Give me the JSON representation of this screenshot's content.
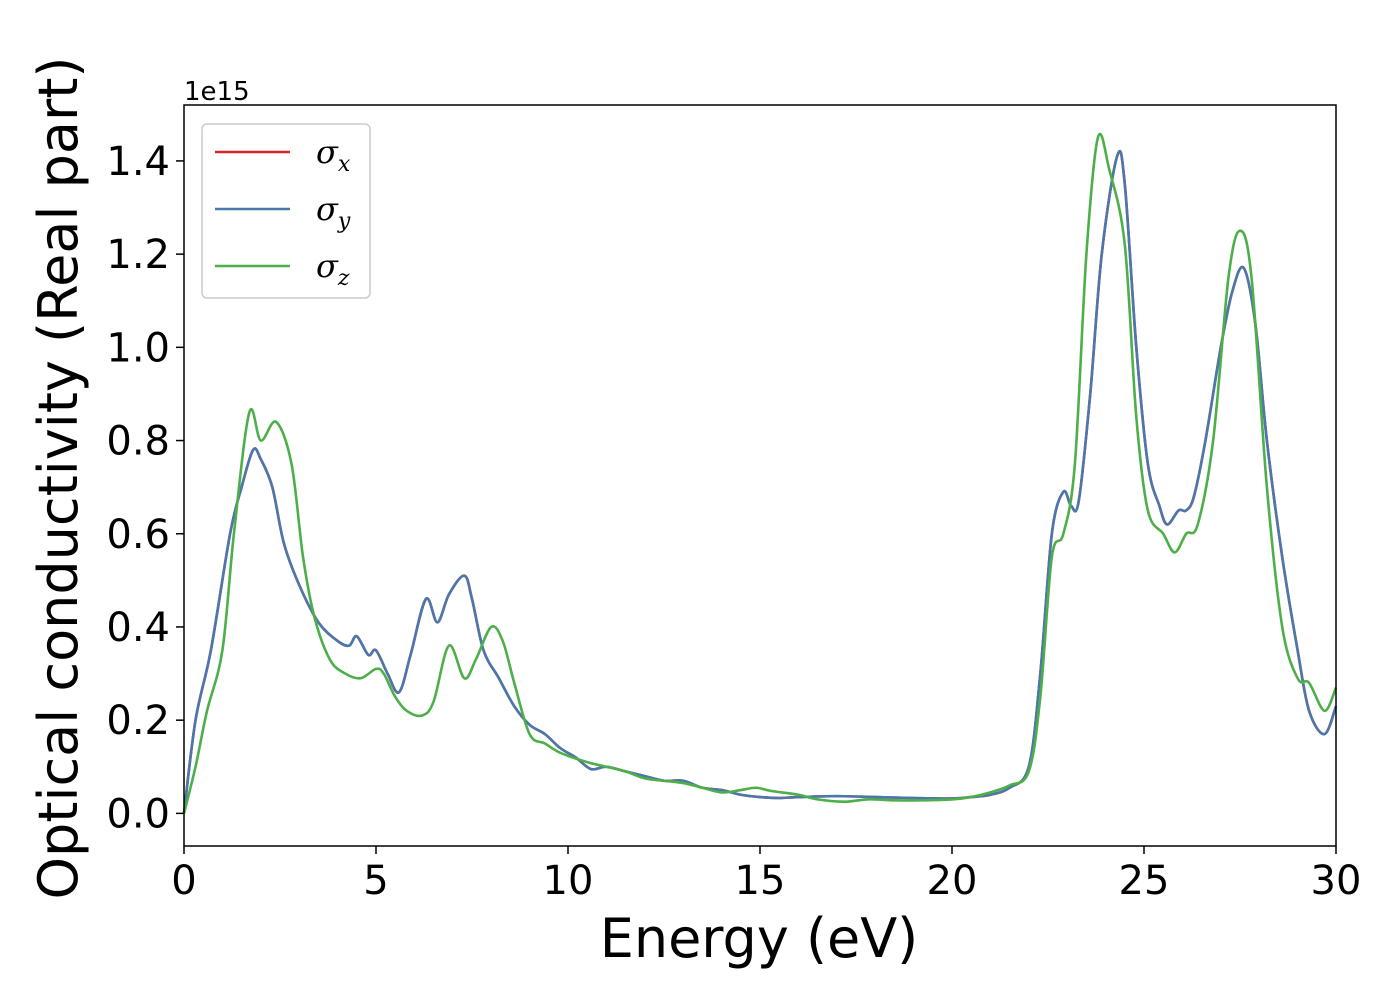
{
  "chart_data": {
    "type": "line",
    "xlabel": "Energy (eV)",
    "ylabel": "Optical conductivity (Real part)",
    "y_offset_label": "1e15",
    "xlim": [
      0,
      30
    ],
    "ylim": [
      -0.07,
      1.52
    ],
    "x_ticks": [
      0,
      5,
      10,
      15,
      20,
      25,
      30
    ],
    "x_tick_labels": [
      "0",
      "5",
      "10",
      "15",
      "20",
      "25",
      "30"
    ],
    "y_ticks": [
      0.0,
      0.2,
      0.4,
      0.6,
      0.8,
      1.0,
      1.2,
      1.4
    ],
    "y_tick_labels": [
      "0.0",
      "0.2",
      "0.4",
      "0.6",
      "0.8",
      "1.0",
      "1.2",
      "1.4"
    ],
    "grid": false,
    "legend_position": "top-left",
    "series": [
      {
        "name": "σx",
        "legend_base": "σ",
        "legend_sub": "x",
        "color": "#d62728",
        "points": [
          [
            0,
            0.0
          ],
          [
            0.3,
            0.2
          ],
          [
            0.7,
            0.35
          ],
          [
            1.2,
            0.6
          ],
          [
            1.5,
            0.7
          ],
          [
            1.8,
            0.78
          ],
          [
            2.0,
            0.76
          ],
          [
            2.3,
            0.7
          ],
          [
            2.6,
            0.58
          ],
          [
            3.0,
            0.49
          ],
          [
            3.5,
            0.41
          ],
          [
            4.0,
            0.37
          ],
          [
            4.3,
            0.36
          ],
          [
            4.5,
            0.38
          ],
          [
            4.8,
            0.34
          ],
          [
            5.0,
            0.35
          ],
          [
            5.3,
            0.3
          ],
          [
            5.6,
            0.26
          ],
          [
            5.9,
            0.34
          ],
          [
            6.3,
            0.46
          ],
          [
            6.6,
            0.41
          ],
          [
            6.9,
            0.47
          ],
          [
            7.3,
            0.51
          ],
          [
            7.5,
            0.46
          ],
          [
            7.8,
            0.35
          ],
          [
            8.2,
            0.29
          ],
          [
            8.6,
            0.23
          ],
          [
            9.0,
            0.19
          ],
          [
            9.4,
            0.17
          ],
          [
            9.8,
            0.14
          ],
          [
            10.2,
            0.12
          ],
          [
            10.6,
            0.095
          ],
          [
            11.0,
            0.1
          ],
          [
            11.5,
            0.09
          ],
          [
            12.0,
            0.08
          ],
          [
            12.5,
            0.07
          ],
          [
            13.0,
            0.07
          ],
          [
            13.5,
            0.055
          ],
          [
            14.0,
            0.05
          ],
          [
            14.5,
            0.04
          ],
          [
            15.0,
            0.035
          ],
          [
            15.5,
            0.033
          ],
          [
            16.0,
            0.035
          ],
          [
            17.0,
            0.037
          ],
          [
            18.0,
            0.035
          ],
          [
            19.0,
            0.033
          ],
          [
            20.0,
            0.032
          ],
          [
            20.5,
            0.035
          ],
          [
            21.0,
            0.04
          ],
          [
            21.5,
            0.055
          ],
          [
            22.0,
            0.1
          ],
          [
            22.3,
            0.3
          ],
          [
            22.6,
            0.6
          ],
          [
            22.9,
            0.69
          ],
          [
            23.1,
            0.66
          ],
          [
            23.3,
            0.67
          ],
          [
            23.6,
            0.9
          ],
          [
            23.9,
            1.2
          ],
          [
            24.3,
            1.41
          ],
          [
            24.5,
            1.35
          ],
          [
            24.8,
            1.0
          ],
          [
            25.1,
            0.75
          ],
          [
            25.4,
            0.66
          ],
          [
            25.6,
            0.62
          ],
          [
            25.9,
            0.65
          ],
          [
            26.1,
            0.65
          ],
          [
            26.3,
            0.68
          ],
          [
            26.6,
            0.8
          ],
          [
            27.0,
            1.0
          ],
          [
            27.3,
            1.12
          ],
          [
            27.6,
            1.17
          ],
          [
            27.9,
            1.05
          ],
          [
            28.2,
            0.8
          ],
          [
            28.6,
            0.55
          ],
          [
            29.0,
            0.35
          ],
          [
            29.3,
            0.22
          ],
          [
            29.7,
            0.17
          ],
          [
            30.0,
            0.23
          ]
        ]
      },
      {
        "name": "σy",
        "legend_base": "σ",
        "legend_sub": "y",
        "color": "#4a78ad",
        "points": [
          [
            0,
            0.0
          ],
          [
            0.3,
            0.2
          ],
          [
            0.7,
            0.35
          ],
          [
            1.2,
            0.6
          ],
          [
            1.5,
            0.7
          ],
          [
            1.8,
            0.78
          ],
          [
            2.0,
            0.76
          ],
          [
            2.3,
            0.7
          ],
          [
            2.6,
            0.58
          ],
          [
            3.0,
            0.49
          ],
          [
            3.5,
            0.41
          ],
          [
            4.0,
            0.37
          ],
          [
            4.3,
            0.36
          ],
          [
            4.5,
            0.38
          ],
          [
            4.8,
            0.34
          ],
          [
            5.0,
            0.35
          ],
          [
            5.3,
            0.3
          ],
          [
            5.6,
            0.26
          ],
          [
            5.9,
            0.34
          ],
          [
            6.3,
            0.46
          ],
          [
            6.6,
            0.41
          ],
          [
            6.9,
            0.47
          ],
          [
            7.3,
            0.51
          ],
          [
            7.5,
            0.46
          ],
          [
            7.8,
            0.35
          ],
          [
            8.2,
            0.29
          ],
          [
            8.6,
            0.23
          ],
          [
            9.0,
            0.19
          ],
          [
            9.4,
            0.17
          ],
          [
            9.8,
            0.14
          ],
          [
            10.2,
            0.12
          ],
          [
            10.6,
            0.095
          ],
          [
            11.0,
            0.1
          ],
          [
            11.5,
            0.09
          ],
          [
            12.0,
            0.08
          ],
          [
            12.5,
            0.07
          ],
          [
            13.0,
            0.07
          ],
          [
            13.5,
            0.055
          ],
          [
            14.0,
            0.05
          ],
          [
            14.5,
            0.04
          ],
          [
            15.0,
            0.035
          ],
          [
            15.5,
            0.033
          ],
          [
            16.0,
            0.035
          ],
          [
            17.0,
            0.037
          ],
          [
            18.0,
            0.035
          ],
          [
            19.0,
            0.033
          ],
          [
            20.0,
            0.032
          ],
          [
            20.5,
            0.035
          ],
          [
            21.0,
            0.04
          ],
          [
            21.5,
            0.055
          ],
          [
            22.0,
            0.1
          ],
          [
            22.3,
            0.3
          ],
          [
            22.6,
            0.6
          ],
          [
            22.9,
            0.69
          ],
          [
            23.1,
            0.66
          ],
          [
            23.3,
            0.67
          ],
          [
            23.6,
            0.9
          ],
          [
            23.9,
            1.2
          ],
          [
            24.3,
            1.41
          ],
          [
            24.5,
            1.35
          ],
          [
            24.8,
            1.0
          ],
          [
            25.1,
            0.75
          ],
          [
            25.4,
            0.66
          ],
          [
            25.6,
            0.62
          ],
          [
            25.9,
            0.65
          ],
          [
            26.1,
            0.65
          ],
          [
            26.3,
            0.68
          ],
          [
            26.6,
            0.8
          ],
          [
            27.0,
            1.0
          ],
          [
            27.3,
            1.12
          ],
          [
            27.6,
            1.17
          ],
          [
            27.9,
            1.05
          ],
          [
            28.2,
            0.8
          ],
          [
            28.6,
            0.55
          ],
          [
            29.0,
            0.35
          ],
          [
            29.3,
            0.22
          ],
          [
            29.7,
            0.17
          ],
          [
            30.0,
            0.23
          ]
        ]
      },
      {
        "name": "σz",
        "legend_base": "σ",
        "legend_sub": "z",
        "color": "#4daf4a",
        "points": [
          [
            0,
            0.0
          ],
          [
            0.3,
            0.1
          ],
          [
            0.6,
            0.22
          ],
          [
            1.0,
            0.35
          ],
          [
            1.3,
            0.6
          ],
          [
            1.7,
            0.86
          ],
          [
            2.0,
            0.8
          ],
          [
            2.4,
            0.84
          ],
          [
            2.8,
            0.75
          ],
          [
            3.1,
            0.55
          ],
          [
            3.4,
            0.42
          ],
          [
            3.8,
            0.33
          ],
          [
            4.2,
            0.3
          ],
          [
            4.6,
            0.29
          ],
          [
            5.0,
            0.31
          ],
          [
            5.2,
            0.3
          ],
          [
            5.5,
            0.25
          ],
          [
            5.8,
            0.22
          ],
          [
            6.2,
            0.21
          ],
          [
            6.5,
            0.24
          ],
          [
            6.9,
            0.36
          ],
          [
            7.3,
            0.29
          ],
          [
            7.6,
            0.33
          ],
          [
            8.0,
            0.4
          ],
          [
            8.3,
            0.37
          ],
          [
            8.6,
            0.28
          ],
          [
            9.0,
            0.17
          ],
          [
            9.4,
            0.15
          ],
          [
            9.8,
            0.13
          ],
          [
            10.5,
            0.11
          ],
          [
            11.0,
            0.1
          ],
          [
            11.5,
            0.09
          ],
          [
            12.0,
            0.075
          ],
          [
            12.5,
            0.07
          ],
          [
            13.0,
            0.065
          ],
          [
            13.5,
            0.055
          ],
          [
            14.0,
            0.045
          ],
          [
            14.5,
            0.05
          ],
          [
            14.9,
            0.055
          ],
          [
            15.3,
            0.048
          ],
          [
            16.0,
            0.04
          ],
          [
            16.5,
            0.03
          ],
          [
            17.2,
            0.025
          ],
          [
            17.8,
            0.03
          ],
          [
            18.5,
            0.028
          ],
          [
            19.2,
            0.028
          ],
          [
            20.0,
            0.03
          ],
          [
            20.5,
            0.035
          ],
          [
            21.0,
            0.045
          ],
          [
            21.5,
            0.06
          ],
          [
            22.0,
            0.09
          ],
          [
            22.3,
            0.25
          ],
          [
            22.6,
            0.55
          ],
          [
            22.9,
            0.6
          ],
          [
            23.2,
            0.75
          ],
          [
            23.5,
            1.2
          ],
          [
            23.8,
            1.45
          ],
          [
            24.1,
            1.38
          ],
          [
            24.5,
            1.22
          ],
          [
            24.8,
            0.85
          ],
          [
            25.1,
            0.65
          ],
          [
            25.5,
            0.6
          ],
          [
            25.8,
            0.56
          ],
          [
            26.1,
            0.6
          ],
          [
            26.4,
            0.62
          ],
          [
            26.8,
            0.8
          ],
          [
            27.2,
            1.15
          ],
          [
            27.5,
            1.25
          ],
          [
            27.8,
            1.15
          ],
          [
            28.2,
            0.7
          ],
          [
            28.6,
            0.4
          ],
          [
            29.0,
            0.29
          ],
          [
            29.3,
            0.28
          ],
          [
            29.7,
            0.22
          ],
          [
            30.0,
            0.27
          ]
        ]
      }
    ]
  }
}
